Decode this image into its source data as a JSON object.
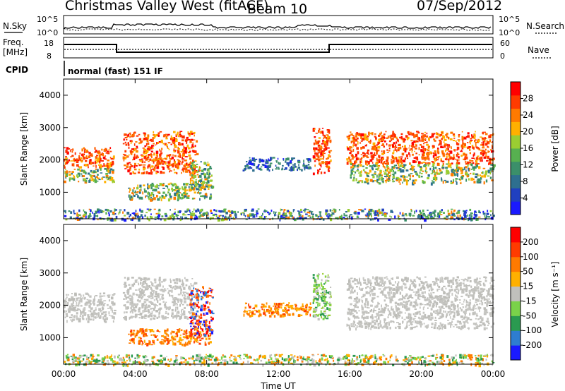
{
  "header": {
    "station": "Christmas Valley West (fitACF)",
    "beam": "Beam 10",
    "date": "07/Sep/2012"
  },
  "strip1": {
    "left_label": "N.Sky",
    "right_label": "N.Search",
    "left_ticks": [
      "10^5",
      "10^0"
    ],
    "right_ticks": [
      "10^5",
      "10^0"
    ]
  },
  "strip2": {
    "left_label_1": "Freq.",
    "left_label_2": "[MHz]",
    "right_label": "Nave",
    "left_ticks": [
      "18",
      "8"
    ],
    "right_ticks": [
      "60",
      "0"
    ]
  },
  "cpid": {
    "label": "CPID",
    "value": "normal (fast) 151 IF"
  },
  "chart_data": [
    {
      "type": "heatmap",
      "name": "power",
      "ylabel": "Slant Range [km]",
      "yticks": [
        "4000",
        "3000",
        "2000",
        "1000"
      ],
      "ylim": [
        180,
        4500
      ],
      "xlim": [
        0,
        24
      ],
      "colorbar": {
        "label": "Power [dB]",
        "ticks": [
          "28",
          "24",
          "20",
          "16",
          "12",
          "8",
          "4"
        ],
        "colors": [
          "#1a1aff",
          "#2040c0",
          "#2e6f8f",
          "#3b8f6a",
          "#57b050",
          "#9acd32",
          "#ffb000",
          "#ff7a00",
          "#ff3b00",
          "#ff0000"
        ]
      },
      "echo_regions": [
        {
          "t0": 0.0,
          "t1": 2.8,
          "r0": 1800,
          "r1": 2400,
          "level": "high"
        },
        {
          "t0": 0.0,
          "t1": 2.8,
          "r0": 1350,
          "r1": 1750,
          "level": "mid"
        },
        {
          "t0": 3.3,
          "t1": 7.4,
          "r0": 1600,
          "r1": 2900,
          "level": "high"
        },
        {
          "t0": 3.6,
          "t1": 8.2,
          "r0": 800,
          "r1": 1300,
          "level": "mid"
        },
        {
          "t0": 7.0,
          "t1": 8.3,
          "r0": 1100,
          "r1": 2000,
          "level": "mid"
        },
        {
          "t0": 10.0,
          "t1": 13.8,
          "r0": 1700,
          "r1": 2100,
          "level": "low"
        },
        {
          "t0": 13.9,
          "t1": 14.9,
          "r0": 1600,
          "r1": 3000,
          "level": "high"
        },
        {
          "t0": 15.8,
          "t1": 24.0,
          "r0": 1900,
          "r1": 2900,
          "level": "high"
        },
        {
          "t0": 16.0,
          "t1": 24.0,
          "r0": 1300,
          "r1": 1900,
          "level": "mid"
        },
        {
          "t0": 0.0,
          "t1": 24.0,
          "r0": 180,
          "r1": 500,
          "level": "ground"
        }
      ]
    },
    {
      "type": "heatmap",
      "name": "velocity",
      "xlabel": "Time UT",
      "ylabel": "Slant Range [km]",
      "yticks": [
        "4000",
        "3000",
        "2000",
        "1000"
      ],
      "xticks": [
        "00:00",
        "04:00",
        "08:00",
        "12:00",
        "16:00",
        "20:00",
        "00:00"
      ],
      "xlim": [
        0,
        24
      ],
      "ylim": [
        180,
        4500
      ],
      "colorbar": {
        "label": "Velocity [m s⁻¹]",
        "ticks": [
          "200",
          "100",
          "50",
          "15",
          "-15",
          "-50",
          "-100",
          "-200"
        ],
        "colors": [
          "#1a1aff",
          "#2e7dd0",
          "#2a9a50",
          "#7ad24a",
          "#c0c0bc",
          "#ffb000",
          "#ff7a00",
          "#ff3b00",
          "#ff0000"
        ]
      },
      "echo_regions": [
        {
          "t0": 0.0,
          "t1": 2.8,
          "r0": 1500,
          "r1": 2400,
          "level": "gray"
        },
        {
          "t0": 3.3,
          "t1": 7.4,
          "r0": 1600,
          "r1": 2900,
          "level": "gray"
        },
        {
          "t0": 3.6,
          "t1": 8.2,
          "r0": 800,
          "r1": 1300,
          "level": "orange"
        },
        {
          "t0": 7.0,
          "t1": 8.3,
          "r0": 1100,
          "r1": 2600,
          "level": "red"
        },
        {
          "t0": 10.0,
          "t1": 13.8,
          "r0": 1700,
          "r1": 2100,
          "level": "orange"
        },
        {
          "t0": 13.9,
          "t1": 14.9,
          "r0": 1600,
          "r1": 3000,
          "level": "green"
        },
        {
          "t0": 15.8,
          "t1": 24.0,
          "r0": 1300,
          "r1": 2900,
          "level": "gray"
        },
        {
          "t0": 0.0,
          "t1": 24.0,
          "r0": 180,
          "r1": 500,
          "level": "ground"
        }
      ]
    }
  ]
}
